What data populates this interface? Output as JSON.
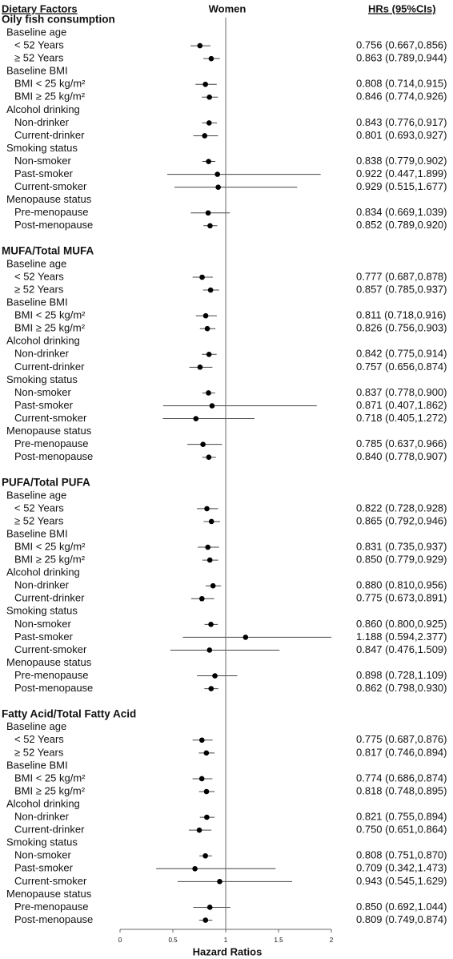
{
  "chart_data": {
    "type": "forest",
    "title": "Women",
    "row_header": "Dietary Factors",
    "value_header": "HRs (95%CIs)",
    "xlabel": "Hazard Ratios",
    "xlim": [
      0,
      2
    ],
    "xticks": [
      0,
      0.5,
      1,
      1.5,
      2
    ],
    "ref_line": 1,
    "point_color": "#000000",
    "line_color": "#444444",
    "groups": [
      {
        "name": "Oily fish consumption",
        "subgroups": [
          {
            "name": "Baseline age",
            "rows": [
              {
                "label": "< 52 Years",
                "hr": 0.756,
                "lo": 0.667,
                "hi": 0.856,
                "value_label": "0.756 (0.667,0.856)"
              },
              {
                "label": "≥ 52 Years",
                "hr": 0.863,
                "lo": 0.789,
                "hi": 0.944,
                "value_label": "0.863 (0.789,0.944)"
              }
            ]
          },
          {
            "name": "Baseline BMI",
            "rows": [
              {
                "label": "BMI < 25 kg/m²",
                "hr": 0.808,
                "lo": 0.714,
                "hi": 0.915,
                "value_label": "0.808 (0.714,0.915)"
              },
              {
                "label": "BMI ≥ 25 kg/m²",
                "hr": 0.846,
                "lo": 0.774,
                "hi": 0.926,
                "value_label": "0.846 (0.774,0.926)"
              }
            ]
          },
          {
            "name": "Alcohol drinking",
            "rows": [
              {
                "label": "Non-drinker",
                "hr": 0.843,
                "lo": 0.776,
                "hi": 0.917,
                "value_label": "0.843 (0.776,0.917)"
              },
              {
                "label": "Current-drinker",
                "hr": 0.801,
                "lo": 0.693,
                "hi": 0.927,
                "value_label": "0.801 (0.693,0.927)"
              }
            ]
          },
          {
            "name": "Smoking status",
            "rows": [
              {
                "label": "Non-smoker",
                "hr": 0.838,
                "lo": 0.779,
                "hi": 0.902,
                "value_label": "0.838 (0.779,0.902)"
              },
              {
                "label": "Past-smoker",
                "hr": 0.922,
                "lo": 0.447,
                "hi": 1.899,
                "value_label": "0.922 (0.447,1.899)"
              },
              {
                "label": "Current-smoker",
                "hr": 0.929,
                "lo": 0.515,
                "hi": 1.677,
                "value_label": "0.929 (0.515,1.677)"
              }
            ]
          },
          {
            "name": "Menopause status",
            "rows": [
              {
                "label": "Pre-menopause",
                "hr": 0.834,
                "lo": 0.669,
                "hi": 1.039,
                "value_label": "0.834 (0.669,1.039)"
              },
              {
                "label": "Post-menopause",
                "hr": 0.852,
                "lo": 0.789,
                "hi": 0.92,
                "value_label": "0.852 (0.789,0.920)"
              }
            ]
          }
        ]
      },
      {
        "name": "MUFA/Total MUFA",
        "subgroups": [
          {
            "name": "Baseline age",
            "rows": [
              {
                "label": "< 52 Years",
                "hr": 0.777,
                "lo": 0.687,
                "hi": 0.878,
                "value_label": "0.777 (0.687,0.878)"
              },
              {
                "label": "≥ 52 Years",
                "hr": 0.857,
                "lo": 0.785,
                "hi": 0.937,
                "value_label": "0.857 (0.785,0.937)"
              }
            ]
          },
          {
            "name": "Baseline BMI",
            "rows": [
              {
                "label": "BMI < 25 kg/m²",
                "hr": 0.811,
                "lo": 0.718,
                "hi": 0.916,
                "value_label": "0.811 (0.718,0.916)"
              },
              {
                "label": "BMI ≥ 25 kg/m²",
                "hr": 0.826,
                "lo": 0.756,
                "hi": 0.903,
                "value_label": "0.826 (0.756,0.903)"
              }
            ]
          },
          {
            "name": "Alcohol drinking",
            "rows": [
              {
                "label": "Non-drinker",
                "hr": 0.842,
                "lo": 0.775,
                "hi": 0.914,
                "value_label": "0.842 (0.775,0.914)"
              },
              {
                "label": "Current-drinker",
                "hr": 0.757,
                "lo": 0.656,
                "hi": 0.874,
                "value_label": "0.757 (0.656,0.874)"
              }
            ]
          },
          {
            "name": "Smoking status",
            "rows": [
              {
                "label": "Non-smoker",
                "hr": 0.837,
                "lo": 0.778,
                "hi": 0.9,
                "value_label": "0.837 (0.778,0.900)"
              },
              {
                "label": "Past-smoker",
                "hr": 0.871,
                "lo": 0.407,
                "hi": 1.862,
                "value_label": "0.871 (0.407,1.862)"
              },
              {
                "label": "Current-smoker",
                "hr": 0.718,
                "lo": 0.405,
                "hi": 1.272,
                "value_label": "0.718 (0.405,1.272)"
              }
            ]
          },
          {
            "name": "Menopause status",
            "rows": [
              {
                "label": "Pre-menopause",
                "hr": 0.785,
                "lo": 0.637,
                "hi": 0.966,
                "value_label": "0.785 (0.637,0.966)"
              },
              {
                "label": "Post-menopause",
                "hr": 0.84,
                "lo": 0.778,
                "hi": 0.907,
                "value_label": "0.840 (0.778,0.907)"
              }
            ]
          }
        ]
      },
      {
        "name": "PUFA/Total PUFA",
        "subgroups": [
          {
            "name": "Baseline age",
            "rows": [
              {
                "label": "< 52 Years",
                "hr": 0.822,
                "lo": 0.728,
                "hi": 0.928,
                "value_label": "0.822 (0.728,0.928)"
              },
              {
                "label": "≥ 52 Years",
                "hr": 0.865,
                "lo": 0.792,
                "hi": 0.946,
                "value_label": "0.865 (0.792,0.946)"
              }
            ]
          },
          {
            "name": "Baseline BMI",
            "rows": [
              {
                "label": "BMI < 25 kg/m²",
                "hr": 0.831,
                "lo": 0.735,
                "hi": 0.937,
                "value_label": "0.831 (0.735,0.937)"
              },
              {
                "label": "BMI ≥ 25 kg/m²",
                "hr": 0.85,
                "lo": 0.779,
                "hi": 0.929,
                "value_label": "0.850 (0.779,0.929)"
              }
            ]
          },
          {
            "name": "Alcohol drinking",
            "rows": [
              {
                "label": "Non-drinker",
                "hr": 0.88,
                "lo": 0.81,
                "hi": 0.956,
                "value_label": "0.880 (0.810,0.956)"
              },
              {
                "label": "Current-drinker",
                "hr": 0.775,
                "lo": 0.673,
                "hi": 0.891,
                "value_label": "0.775 (0.673,0.891)"
              }
            ]
          },
          {
            "name": "Smoking status",
            "rows": [
              {
                "label": "Non-smoker",
                "hr": 0.86,
                "lo": 0.8,
                "hi": 0.925,
                "value_label": "0.860 (0.800,0.925)"
              },
              {
                "label": "Past-smoker",
                "hr": 1.188,
                "lo": 0.594,
                "hi": 2.377,
                "value_label": "1.188 (0.594,2.377)"
              },
              {
                "label": "Current-smoker",
                "hr": 0.847,
                "lo": 0.476,
                "hi": 1.509,
                "value_label": "0.847 (0.476,1.509)"
              }
            ]
          },
          {
            "name": "Menopause status",
            "rows": [
              {
                "label": "Pre-menopause",
                "hr": 0.898,
                "lo": 0.728,
                "hi": 1.109,
                "value_label": "0.898 (0.728,1.109)"
              },
              {
                "label": "Post-menopause",
                "hr": 0.862,
                "lo": 0.798,
                "hi": 0.93,
                "value_label": "0.862 (0.798,0.930)"
              }
            ]
          }
        ]
      },
      {
        "name": "Fatty Acid/Total Fatty Acid",
        "subgroups": [
          {
            "name": "Baseline age",
            "rows": [
              {
                "label": "< 52 Years",
                "hr": 0.775,
                "lo": 0.687,
                "hi": 0.876,
                "value_label": "0.775 (0.687,0.876)"
              },
              {
                "label": "≥ 52 Years",
                "hr": 0.817,
                "lo": 0.746,
                "hi": 0.894,
                "value_label": "0.817 (0.746,0.894)"
              }
            ]
          },
          {
            "name": "Baseline BMI",
            "rows": [
              {
                "label": "BMI < 25 kg/m²",
                "hr": 0.774,
                "lo": 0.686,
                "hi": 0.874,
                "value_label": "0.774 (0.686,0.874)"
              },
              {
                "label": "BMI ≥ 25 kg/m²",
                "hr": 0.818,
                "lo": 0.748,
                "hi": 0.895,
                "value_label": "0.818 (0.748,0.895)"
              }
            ]
          },
          {
            "name": "Alcohol drinking",
            "rows": [
              {
                "label": "Non-drinker",
                "hr": 0.821,
                "lo": 0.755,
                "hi": 0.894,
                "value_label": "0.821 (0.755,0.894)"
              },
              {
                "label": "Current-drinker",
                "hr": 0.75,
                "lo": 0.651,
                "hi": 0.864,
                "value_label": "0.750 (0.651,0.864)"
              }
            ]
          },
          {
            "name": "Smoking status",
            "rows": [
              {
                "label": "Non-smoker",
                "hr": 0.808,
                "lo": 0.751,
                "hi": 0.87,
                "value_label": "0.808 (0.751,0.870)"
              },
              {
                "label": "Past-smoker",
                "hr": 0.709,
                "lo": 0.342,
                "hi": 1.473,
                "value_label": "0.709 (0.342,1.473)"
              },
              {
                "label": "Current-smoker",
                "hr": 0.943,
                "lo": 0.545,
                "hi": 1.629,
                "value_label": "0.943 (0.545,1.629)"
              }
            ]
          },
          {
            "name": "Menopause status",
            "rows": [
              {
                "label": "Pre-menopause",
                "hr": 0.85,
                "lo": 0.692,
                "hi": 1.044,
                "value_label": "0.850 (0.692,1.044)"
              },
              {
                "label": "Post-menopause",
                "hr": 0.809,
                "lo": 0.749,
                "hi": 0.874,
                "value_label": "0.809 (0.749,0.874)"
              }
            ]
          }
        ]
      }
    ]
  }
}
